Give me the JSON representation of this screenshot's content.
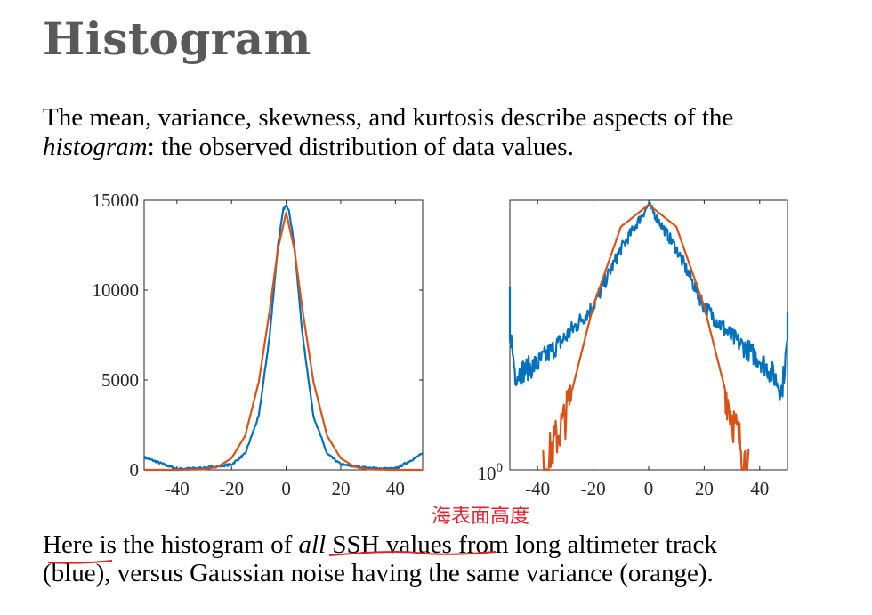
{
  "slide": {
    "title": "Histogram",
    "intro_line1": "The mean, variance, skewness, and kurtosis describe aspects of the",
    "intro_line2_italic": "histogram",
    "intro_line2_rest": ": the observed distribution of data values.",
    "handwritten_note": "海表面高度",
    "caption_part1": "Here is the histogram of ",
    "caption_italic": "all",
    "caption_part2": " SSH values from long altimeter track",
    "caption_line2": "(blue), versus Gaussian noise having the same variance (orange)."
  },
  "colors": {
    "ssh": "#0072BD",
    "gaussian": "#D95319",
    "annotation": "#e0202a",
    "title": "#595959"
  },
  "chart_data": [
    {
      "type": "line",
      "scale": "linear",
      "xlim": [
        -52,
        50
      ],
      "ylim": [
        0,
        15000
      ],
      "xticks": [
        "-40",
        "-20",
        "0",
        "20",
        "40"
      ],
      "yticks": [
        "0",
        "5000",
        "10000",
        "15000"
      ],
      "series": [
        {
          "color": "#0072BD",
          "x": [
            -52,
            -40,
            -30,
            -20,
            -15,
            -10,
            -6,
            -3,
            -1,
            0,
            1,
            3,
            6,
            10,
            15,
            20,
            30,
            40,
            50
          ],
          "y": [
            700,
            50,
            100,
            300,
            900,
            3000,
            7500,
            12500,
            14500,
            14700,
            14500,
            12500,
            7500,
            3000,
            900,
            300,
            100,
            50,
            900
          ]
        },
        {
          "color": "#D95319",
          "x": [
            -52,
            -40,
            -30,
            -25,
            -20,
            -15,
            -10,
            -6,
            -3,
            0,
            3,
            6,
            10,
            15,
            20,
            25,
            30,
            40,
            50
          ],
          "y": [
            0,
            0,
            30,
            180,
            650,
            1900,
            4900,
            8900,
            12300,
            14300,
            12300,
            8900,
            4900,
            1900,
            650,
            180,
            30,
            0,
            0
          ]
        }
      ]
    },
    {
      "type": "line",
      "scale": "log",
      "xlim": [
        -50,
        50
      ],
      "xticks": [
        "-40",
        "-20",
        "0",
        "20",
        "40"
      ],
      "ytick_base": "10",
      "ytick_exp": "0",
      "series": [
        {
          "color": "#0072BD",
          "x": [
            -50,
            -48,
            -40,
            -30,
            -20,
            -10,
            0,
            10,
            20,
            30,
            40,
            45,
            48,
            50
          ],
          "y": [
            1.58,
            1.08,
            1.2,
            1.5,
            1.85,
            2.5,
            3.0,
            2.5,
            1.85,
            1.5,
            1.25,
            1.07,
            0.9,
            1.45
          ]
        },
        {
          "color": "#D95319",
          "x": [
            -38,
            -30,
            -20,
            -10,
            0,
            10,
            20,
            30,
            34,
            36
          ],
          "y": [
            0,
            0.6,
            1.85,
            2.75,
            3.0,
            2.75,
            1.85,
            0.6,
            0.2,
            0
          ]
        }
      ]
    }
  ]
}
